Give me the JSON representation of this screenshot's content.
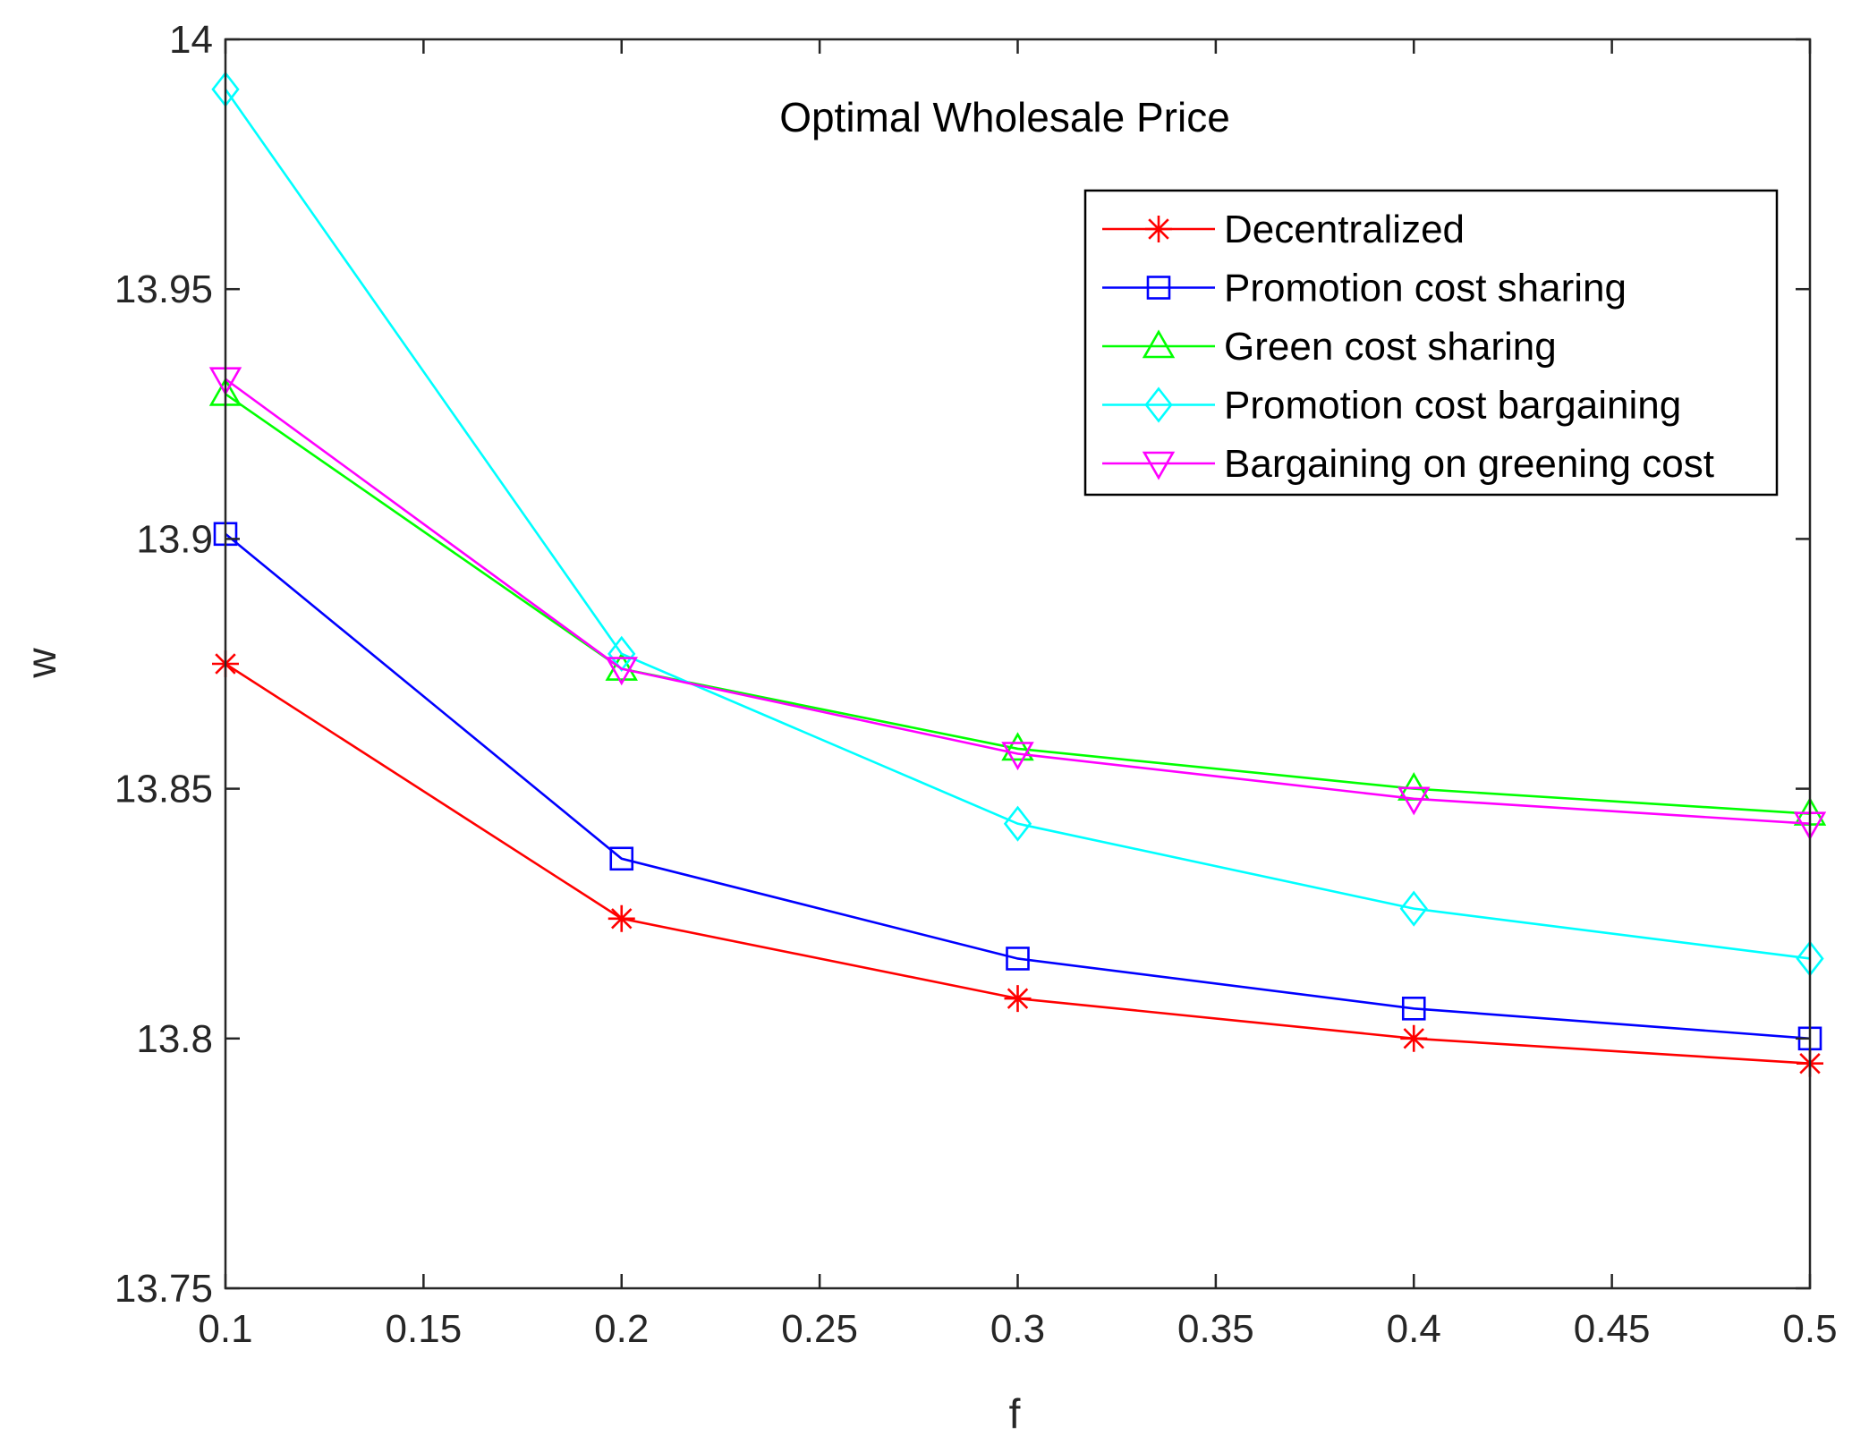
{
  "chart_data": {
    "type": "line",
    "title": "Optimal Wholesale Price",
    "xlabel": "f",
    "ylabel": "w",
    "xlim": [
      0.1,
      0.5
    ],
    "ylim": [
      13.75,
      14
    ],
    "xticks": [
      "0.1",
      "0.15",
      "0.2",
      "0.25",
      "0.3",
      "0.35",
      "0.4",
      "0.45",
      "0.5"
    ],
    "xtick_values": [
      0.1,
      0.15,
      0.2,
      0.25,
      0.3,
      0.35,
      0.4,
      0.45,
      0.5
    ],
    "yticks": [
      "13.75",
      "13.8",
      "13.85",
      "13.9",
      "13.95",
      "14"
    ],
    "ytick_values": [
      13.75,
      13.8,
      13.85,
      13.9,
      13.95,
      14.0
    ],
    "grid": false,
    "legend_position": "top-right",
    "x": [
      0.1,
      0.2,
      0.3,
      0.4,
      0.5
    ],
    "series": [
      {
        "name": "Decentralized",
        "color": "#ff0000",
        "marker": "asterisk",
        "values": [
          13.875,
          13.824,
          13.808,
          13.8,
          13.795
        ]
      },
      {
        "name": "Promotion cost sharing",
        "color": "#0000ff",
        "marker": "square",
        "values": [
          13.901,
          13.836,
          13.816,
          13.806,
          13.8
        ]
      },
      {
        "name": "Green cost sharing",
        "color": "#00ff00",
        "marker": "triangle-up",
        "values": [
          13.929,
          13.874,
          13.858,
          13.85,
          13.845
        ]
      },
      {
        "name": "Promotion cost bargaining",
        "color": "#00ffff",
        "marker": "diamond",
        "values": [
          13.99,
          13.877,
          13.843,
          13.826,
          13.816
        ]
      },
      {
        "name": "Bargaining on greening cost",
        "color": "#ff00ff",
        "marker": "triangle-down",
        "values": [
          13.932,
          13.874,
          13.857,
          13.848,
          13.843
        ]
      }
    ]
  }
}
